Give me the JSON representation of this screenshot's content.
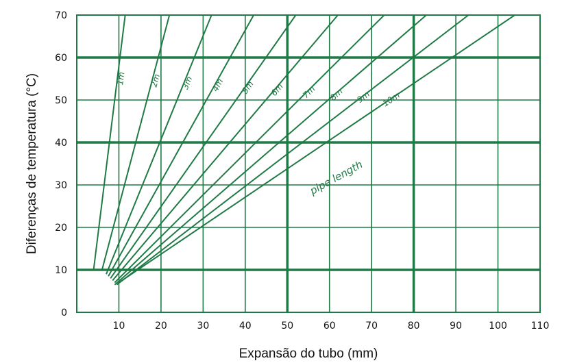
{
  "chart_data": {
    "type": "line",
    "title": "",
    "xlabel": "Expansão do tubo (mm)",
    "ylabel": "Diferenças de temperatura (°C)",
    "xlim": [
      0,
      110
    ],
    "ylim": [
      0,
      70
    ],
    "xticks": [
      10,
      20,
      30,
      40,
      50,
      60,
      70,
      80,
      90,
      100,
      110
    ],
    "xtick_labels": [
      "10",
      "20",
      "30",
      "40",
      "50",
      "60",
      "70",
      "80",
      "90",
      "100",
      "110"
    ],
    "yticks": [
      0,
      10,
      20,
      30,
      40,
      50,
      60,
      70
    ],
    "ytick_labels": [
      "0",
      "10",
      "20",
      "30",
      "40",
      "50",
      "60",
      "70"
    ],
    "major_x": [
      50,
      80
    ],
    "major_y": [
      10,
      40,
      60
    ],
    "grid": true,
    "annotation": "pipe length",
    "series": [
      {
        "name": "1m",
        "points": [
          [
            4,
            10
          ],
          [
            11.5,
            70
          ]
        ]
      },
      {
        "name": "2m",
        "points": [
          [
            6,
            10
          ],
          [
            22,
            70
          ]
        ]
      },
      {
        "name": "3m",
        "points": [
          [
            7,
            9
          ],
          [
            32,
            70
          ]
        ]
      },
      {
        "name": "4m",
        "points": [
          [
            7.5,
            8.5
          ],
          [
            42,
            70
          ]
        ]
      },
      {
        "name": "5m",
        "points": [
          [
            8,
            8
          ],
          [
            52,
            70
          ]
        ]
      },
      {
        "name": "6m",
        "points": [
          [
            8.5,
            7.5
          ],
          [
            62,
            70
          ]
        ]
      },
      {
        "name": "7m",
        "points": [
          [
            9,
            7
          ],
          [
            73,
            70
          ]
        ]
      },
      {
        "name": "8m",
        "points": [
          [
            9,
            6.5
          ],
          [
            83,
            70
          ]
        ]
      },
      {
        "name": "9m",
        "points": [
          [
            9.5,
            6.5
          ],
          [
            93,
            70
          ]
        ]
      },
      {
        "name": "10m",
        "points": [
          [
            10,
            7
          ],
          [
            104,
            70
          ]
        ]
      }
    ],
    "colors": {
      "line": "#1f7a45",
      "grid": "#1f7a45",
      "text": "#111111"
    }
  }
}
